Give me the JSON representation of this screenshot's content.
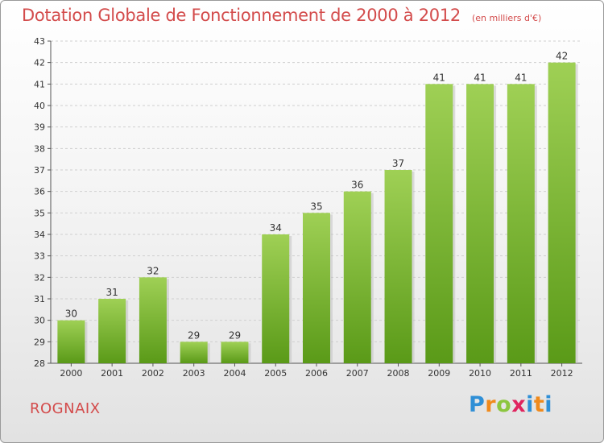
{
  "header": {
    "title": "Dotation Globale de Fonctionnement de 2000 à 2012",
    "unit": "(en milliers d'€)"
  },
  "footer": {
    "place": "ROGNAIX",
    "logo": "Proxiti"
  },
  "colors": {
    "title": "#d34b4b",
    "bar_top": "#9fd055",
    "bar_bottom": "#5a9a18"
  },
  "chart_data": {
    "type": "bar",
    "title": "Dotation Globale de Fonctionnement de 2000 à 2012",
    "subtitle": "(en milliers d'€)",
    "categories": [
      "2000",
      "2001",
      "2002",
      "2003",
      "2004",
      "2005",
      "2006",
      "2007",
      "2008",
      "2009",
      "2010",
      "2011",
      "2012"
    ],
    "values": [
      30,
      31,
      32,
      29,
      29,
      34,
      35,
      36,
      37,
      41,
      41,
      41,
      42
    ],
    "data_labels": [
      "30",
      "31",
      "32",
      "29",
      "29",
      "34",
      "35",
      "36",
      "37",
      "41",
      "41",
      "41",
      "42"
    ],
    "ylim": [
      28,
      43
    ],
    "yticks": [
      "28",
      "29",
      "30",
      "31",
      "32",
      "33",
      "34",
      "35",
      "36",
      "37",
      "38",
      "39",
      "40",
      "41",
      "42",
      "43"
    ],
    "grid": true
  }
}
